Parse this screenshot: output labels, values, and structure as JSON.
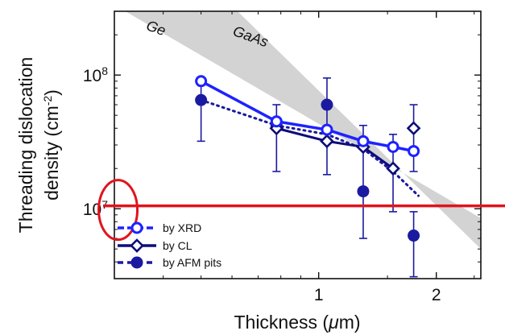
{
  "chart_data": {
    "type": "line",
    "xscale": "log",
    "yscale": "log",
    "xlim": [
      0.3,
      2.6
    ],
    "ylim": [
      3000000,
      300000000
    ],
    "x_ticks": [
      {
        "value": 1,
        "label": "1"
      },
      {
        "value": 2,
        "label": "2"
      }
    ],
    "y_ticks": [
      {
        "value": 10000000,
        "base": "10",
        "exp": "7"
      },
      {
        "value": 100000000,
        "base": "10",
        "exp": "8"
      }
    ],
    "xlabel": {
      "pre": "Thickness (",
      "mu": "μ",
      "post": "m)"
    },
    "ylabel": {
      "line1": "Threading dislocation",
      "line2_pre": "density (cm",
      "line2_sup": "-2",
      "line2_post": ")"
    },
    "annotations": [
      {
        "text": "Ge",
        "x": 0.36,
        "y": 220000000,
        "rotate": 20
      },
      {
        "text": "GaAs",
        "x": 0.6,
        "y": 200000000,
        "rotate": 20
      }
    ],
    "band": {
      "label": "Ge/GaAs band",
      "color": "#d3d3d3",
      "upper": [
        [
          0.32,
          300000000
        ],
        [
          2.6,
          8500000
        ]
      ],
      "lower": [
        [
          0.62,
          300000000
        ],
        [
          2.6,
          5000000
        ]
      ]
    },
    "reference_line": {
      "y": 10500000,
      "color": "#e0141e"
    },
    "highlight_ellipse": {
      "x": 0.308,
      "y": 9800000,
      "color": "#e0141e"
    },
    "series": [
      {
        "name": "by XRD",
        "color": "#1e22ff",
        "marker": "open-circle",
        "line": "solid",
        "points": [
          {
            "x": 0.5,
            "y": 90000000
          },
          {
            "x": 0.78,
            "y": 45000000
          },
          {
            "x": 1.05,
            "y": 39000000
          },
          {
            "x": 1.3,
            "y": 32000000
          },
          {
            "x": 1.55,
            "y": 29000000
          },
          {
            "x": 1.75,
            "y": 27000000
          }
        ]
      },
      {
        "name": "by CL",
        "color": "#0d0d7a",
        "marker": "open-diamond",
        "line": "solid",
        "points": [
          {
            "x": 0.78,
            "y": 40000000
          },
          {
            "x": 1.05,
            "y": 32000000
          },
          {
            "x": 1.3,
            "y": 29000000
          },
          {
            "x": 1.55,
            "y": 20000000
          },
          {
            "x": 1.75,
            "y": 40000000,
            "unconnected": true
          }
        ]
      },
      {
        "name": "by AFM pits",
        "color": "#1a1aa0",
        "marker": "filled-circle",
        "line": "dotted",
        "points": [
          {
            "x": 0.5,
            "y": 65000000,
            "err": [
              32000000,
              95000000
            ]
          },
          {
            "x": 0.78,
            "y": 42000000,
            "err": [
              19000000,
              60000000
            ]
          },
          {
            "x": 1.05,
            "y": 60000000,
            "err": [
              18000000,
              95000000
            ]
          },
          {
            "x": 1.3,
            "y": 13500000,
            "err": [
              6000000,
              42000000
            ]
          },
          {
            "x": 1.55,
            "y": null,
            "err": [
              9500000,
              36000000
            ]
          },
          {
            "x": 1.75,
            "y": 6300000,
            "err": [
              3100000,
              9500000
            ]
          }
        ],
        "trend": [
          [
            0.5,
            65000000
          ],
          [
            0.78,
            42000000
          ],
          [
            1.05,
            36000000
          ],
          [
            1.3,
            28000000
          ],
          [
            1.55,
            19000000
          ],
          [
            1.8,
            12500000
          ]
        ]
      }
    ],
    "error_bars_extra": [
      {
        "x": 1.75,
        "err": [
          19000000,
          60000000
        ]
      }
    ],
    "legend": {
      "position": "bottom-left",
      "entries": [
        "by XRD",
        "by CL",
        "by AFM pits"
      ]
    }
  }
}
